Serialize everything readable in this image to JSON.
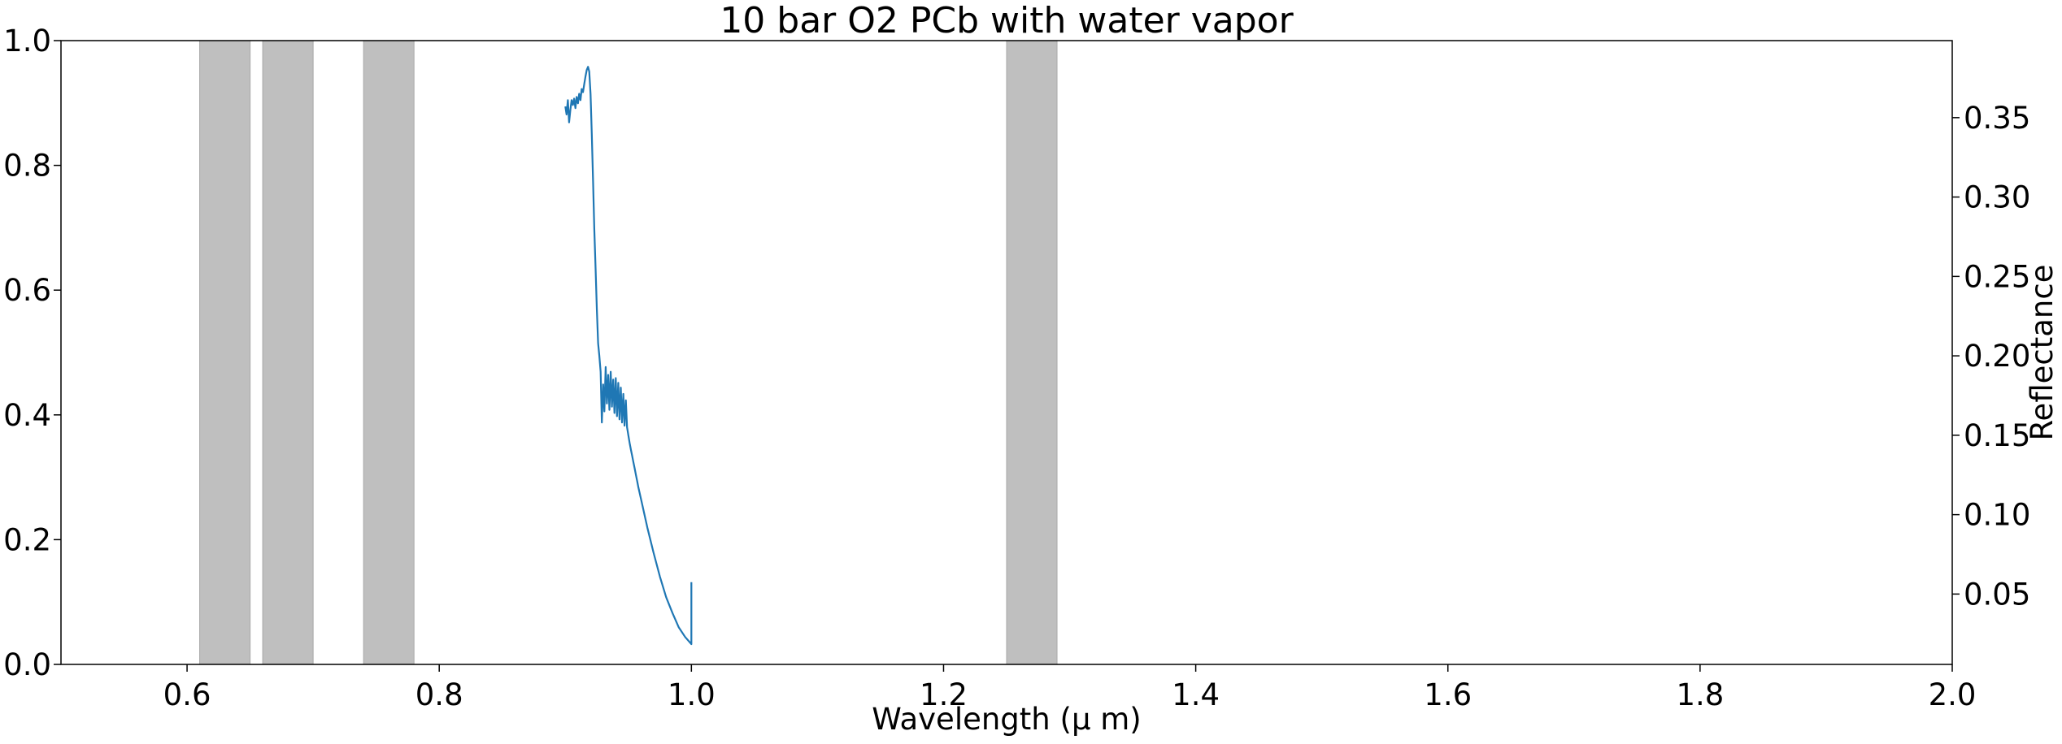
{
  "chart_data": {
    "type": "line",
    "title": "10 bar O2 PCb with water vapor",
    "xlabel": "Wavelength (μ m)",
    "ylabel_right": "Reflectance",
    "xlim": [
      0.5,
      2.0
    ],
    "ylim_left": [
      0.0,
      1.0
    ],
    "ylim_right": [
      0.0057,
      0.3985
    ],
    "x_ticks": [
      "0.6",
      "0.8",
      "1.0",
      "1.2",
      "1.4",
      "1.6",
      "1.8",
      "2.0"
    ],
    "x_tick_values": [
      0.6,
      0.8,
      1.0,
      1.2,
      1.4,
      1.6,
      1.8,
      2.0
    ],
    "y_left_ticks": [
      "0.0",
      "0.2",
      "0.4",
      "0.6",
      "0.8",
      "1.0"
    ],
    "y_left_tick_values": [
      0.0,
      0.2,
      0.4,
      0.6,
      0.8,
      1.0
    ],
    "y_right_ticks": [
      "0.05",
      "0.10",
      "0.15",
      "0.20",
      "0.25",
      "0.30",
      "0.35"
    ],
    "y_right_tick_values": [
      0.05,
      0.1,
      0.15,
      0.2,
      0.25,
      0.3,
      0.35
    ],
    "shaded_bands": [
      {
        "x0": 0.61,
        "x1": 0.65
      },
      {
        "x0": 0.66,
        "x1": 0.7
      },
      {
        "x0": 0.74,
        "x1": 0.78
      },
      {
        "x0": 1.25,
        "x1": 1.29
      }
    ],
    "band_color": "#bfbfbf",
    "series": [
      {
        "color": "#1f77b4",
        "axis": "right",
        "x": [
          0.9,
          0.901,
          0.902,
          0.903,
          0.904,
          0.905,
          0.906,
          0.907,
          0.908,
          0.909,
          0.91,
          0.911,
          0.912,
          0.913,
          0.914,
          0.915,
          0.916,
          0.917,
          0.918,
          0.919,
          0.92,
          0.921,
          0.922,
          0.923,
          0.924,
          0.925,
          0.926,
          0.927,
          0.928,
          0.929,
          0.93,
          0.931,
          0.932,
          0.933,
          0.934,
          0.935,
          0.936,
          0.937,
          0.938,
          0.939,
          0.94,
          0.941,
          0.942,
          0.943,
          0.944,
          0.945,
          0.946,
          0.947,
          0.948,
          0.949,
          0.95,
          0.951,
          0.952,
          0.953,
          0.954,
          0.955,
          0.956,
          0.957,
          0.958,
          0.96,
          0.965,
          0.97,
          0.975,
          0.98,
          0.985,
          0.99,
          0.995,
          1.0,
          1.0
        ],
        "y": [
          0.357,
          0.352,
          0.361,
          0.347,
          0.355,
          0.361,
          0.358,
          0.362,
          0.356,
          0.363,
          0.359,
          0.365,
          0.361,
          0.368,
          0.366,
          0.371,
          0.376,
          0.38,
          0.382,
          0.379,
          0.365,
          0.34,
          0.31,
          0.28,
          0.255,
          0.23,
          0.208,
          0.2,
          0.19,
          0.158,
          0.182,
          0.165,
          0.193,
          0.17,
          0.188,
          0.166,
          0.19,
          0.168,
          0.185,
          0.164,
          0.186,
          0.162,
          0.183,
          0.16,
          0.18,
          0.158,
          0.176,
          0.156,
          0.172,
          0.155,
          0.15,
          0.145,
          0.141,
          0.137,
          0.133,
          0.129,
          0.125,
          0.121,
          0.117,
          0.11,
          0.092,
          0.076,
          0.061,
          0.048,
          0.038,
          0.029,
          0.023,
          0.0185,
          0.0575
        ]
      }
    ]
  }
}
